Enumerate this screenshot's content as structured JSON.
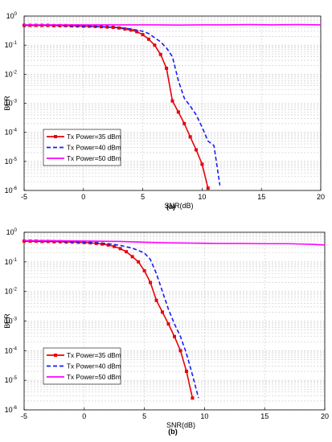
{
  "chart_data": [
    {
      "type": "line",
      "panel_label": "(a)",
      "xlabel": "SNR(dB)",
      "ylabel": "BER",
      "xlim": [
        -5,
        20
      ],
      "ylim": [
        1e-06,
        1
      ],
      "yscale": "log",
      "grid": true,
      "legend_position": "lower-left",
      "x_ticks": [
        -5,
        0,
        5,
        10,
        15,
        20
      ],
      "y_ticks": [
        {
          "exp": -6
        },
        {
          "exp": -5
        },
        {
          "exp": -4
        },
        {
          "exp": -3
        },
        {
          "exp": -2
        },
        {
          "exp": -1
        },
        {
          "exp": 0
        }
      ],
      "series": [
        {
          "name": "Tx Power=35 dBm",
          "color": "#e8000b",
          "style": "solid-square",
          "x": [
            -5,
            -4.5,
            -4,
            -3.5,
            -3,
            -2.5,
            -2,
            -1.5,
            -1,
            -0.5,
            0,
            0.5,
            1,
            1.5,
            2,
            2.5,
            3,
            3.5,
            4,
            4.5,
            5,
            5.5,
            6,
            6.5,
            7,
            7.5,
            8,
            8.5,
            9,
            9.5,
            10,
            10.5
          ],
          "y": [
            0.48,
            0.48,
            0.48,
            0.48,
            0.48,
            0.47,
            0.47,
            0.47,
            0.46,
            0.46,
            0.45,
            0.45,
            0.44,
            0.43,
            0.42,
            0.41,
            0.39,
            0.36,
            0.33,
            0.29,
            0.23,
            0.16,
            0.1,
            0.048,
            0.016,
            0.0012,
            0.0005,
            0.0002,
            7e-05,
            2.5e-05,
            8e-06,
            1.2e-06
          ]
        },
        {
          "name": "Tx Power=40 dBm",
          "color": "#1a1aff",
          "style": "dashed",
          "x": [
            -5,
            -4,
            -3,
            -2,
            -1,
            0,
            1,
            2,
            3,
            4,
            5,
            5.5,
            6,
            6.5,
            7,
            7.5,
            8,
            8.5,
            9,
            9.5,
            10,
            10.5,
            11,
            11.5
          ],
          "y": [
            0.48,
            0.48,
            0.48,
            0.47,
            0.46,
            0.45,
            0.44,
            0.42,
            0.4,
            0.36,
            0.3,
            0.25,
            0.18,
            0.13,
            0.08,
            0.04,
            0.006,
            0.0015,
            0.0008,
            0.0004,
            0.00015,
            5e-05,
            3.5e-05,
            1.5e-06
          ]
        },
        {
          "name": "Tx Power=50 dBm",
          "color": "#ff00ff",
          "style": "solid",
          "x": [
            -5,
            -2,
            0,
            2,
            4,
            6,
            8,
            10,
            12,
            14,
            16,
            18,
            20
          ],
          "y": [
            0.5,
            0.5,
            0.5,
            0.5,
            0.5,
            0.5,
            0.49,
            0.5,
            0.5,
            0.51,
            0.5,
            0.51,
            0.5
          ]
        }
      ]
    },
    {
      "type": "line",
      "panel_label": "(b)",
      "xlabel": "SNR(dB)",
      "ylabel": "BER",
      "xlim": [
        -5,
        20
      ],
      "ylim": [
        1e-06,
        1
      ],
      "yscale": "log",
      "grid": true,
      "legend_position": "lower-left",
      "x_ticks": [
        -5,
        0,
        5,
        10,
        15,
        20
      ],
      "y_ticks": [
        {
          "exp": -6
        },
        {
          "exp": -5
        },
        {
          "exp": -4
        },
        {
          "exp": -3
        },
        {
          "exp": -2
        },
        {
          "exp": -1
        },
        {
          "exp": 0
        }
      ],
      "series": [
        {
          "name": "Tx Power=35 dBm",
          "color": "#e8000b",
          "style": "solid-square",
          "x": [
            -5,
            -4.5,
            -4,
            -3.5,
            -3,
            -2.5,
            -2,
            -1.5,
            -1,
            -0.5,
            0,
            0.5,
            1,
            1.5,
            2,
            2.5,
            3,
            3.5,
            4,
            4.5,
            5,
            5.5,
            6,
            6.5,
            7,
            7.5,
            8,
            8.5,
            9
          ],
          "y": [
            0.5,
            0.5,
            0.5,
            0.49,
            0.49,
            0.48,
            0.48,
            0.47,
            0.47,
            0.46,
            0.45,
            0.44,
            0.42,
            0.4,
            0.37,
            0.33,
            0.28,
            0.22,
            0.15,
            0.1,
            0.05,
            0.02,
            0.005,
            0.002,
            0.0008,
            0.0003,
            0.0001,
            2e-05,
            2.5e-06
          ]
        },
        {
          "name": "Tx Power=40 dBm",
          "color": "#1a1aff",
          "style": "dashed",
          "x": [
            -5,
            -4,
            -3,
            -2,
            -1,
            0,
            1,
            2,
            3,
            4,
            5,
            5.5,
            6,
            6.5,
            7,
            7.5,
            8,
            8.5,
            9,
            9.5
          ],
          "y": [
            0.5,
            0.49,
            0.49,
            0.48,
            0.47,
            0.46,
            0.44,
            0.41,
            0.36,
            0.29,
            0.2,
            0.12,
            0.04,
            0.01,
            0.0025,
            0.0008,
            0.0003,
            8e-05,
            1.5e-05,
            2.5e-06
          ]
        },
        {
          "name": "Tx Power=50 dBm",
          "color": "#ff00ff",
          "style": "solid",
          "x": [
            -5,
            -3,
            -1,
            1,
            3,
            5,
            7,
            9,
            11,
            13,
            15,
            17,
            19,
            20
          ],
          "y": [
            0.52,
            0.52,
            0.51,
            0.5,
            0.49,
            0.46,
            0.44,
            0.43,
            0.42,
            0.42,
            0.41,
            0.41,
            0.39,
            0.37
          ]
        }
      ]
    }
  ]
}
